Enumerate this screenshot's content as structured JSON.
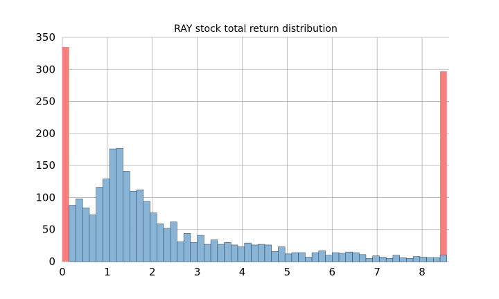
{
  "chart_data": {
    "type": "bar",
    "title": "RAY stock total return distribution",
    "xlabel": "",
    "ylabel": "",
    "xlim": [
      0,
      8.6
    ],
    "ylim": [
      0,
      350
    ],
    "bin_width": 0.15,
    "x_ticks": [
      "0",
      "1",
      "2",
      "3",
      "4",
      "5",
      "6",
      "7",
      "8"
    ],
    "y_ticks": [
      "0",
      "50",
      "100",
      "150",
      "200",
      "250",
      "300",
      "350"
    ],
    "grid": true,
    "colors": {
      "main": "#8ab4d6",
      "main_edge": "#1a3a55",
      "tail": "#f47f7f"
    },
    "series": [
      {
        "role": "tail",
        "values": [
          {
            "x": 0.0,
            "count": 335
          },
          {
            "x": 8.4,
            "count": 297
          }
        ]
      },
      {
        "role": "main",
        "start": 0.15,
        "counts": [
          88,
          98,
          84,
          73,
          116,
          129,
          176,
          177,
          141,
          110,
          112,
          94,
          76,
          59,
          52,
          62,
          31,
          44,
          30,
          41,
          27,
          34,
          27,
          30,
          26,
          23,
          29,
          26,
          27,
          26,
          16,
          23,
          12,
          14,
          14,
          7,
          14,
          17,
          10,
          14,
          13,
          15,
          14,
          11,
          5,
          9,
          7,
          5,
          10,
          6,
          5,
          8,
          7,
          6,
          6,
          10
        ]
      }
    ]
  }
}
